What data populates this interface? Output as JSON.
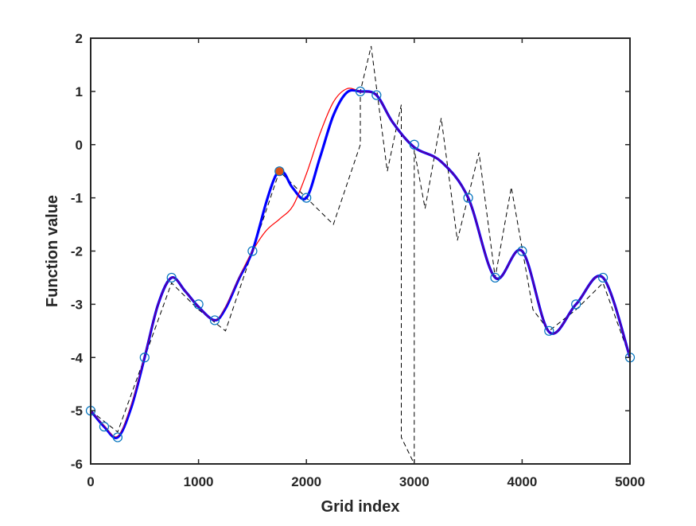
{
  "chart_data": {
    "type": "line",
    "title": "",
    "xlabel": "Grid index",
    "ylabel": "Function value",
    "xlim": [
      0,
      5000
    ],
    "ylim": [
      -6,
      2
    ],
    "xticks": [
      0,
      1000,
      2000,
      3000,
      4000,
      5000
    ],
    "yticks": [
      -6,
      -5,
      -4,
      -3,
      -2,
      -1,
      0,
      1,
      2
    ],
    "grid": false,
    "legend": "none",
    "colors": {
      "axes": "#262626",
      "markers": "#0072BD",
      "highlight": "#D95319",
      "red_curve": "#FF0000",
      "blue_curve": "#0000FF",
      "dashed": "#000000"
    },
    "series": [
      {
        "style": "markers-circle",
        "x": [
          0,
          125,
          250,
          500,
          750,
          1000,
          1150,
          1500,
          1750,
          2000,
          2500,
          2650,
          3000,
          3500,
          3750,
          4000,
          4250,
          4500,
          4750,
          5000
        ],
        "y": [
          -5,
          -5.3,
          -5.5,
          -4,
          -2.5,
          -3,
          -3.3,
          -2,
          -0.5,
          -1,
          1,
          0.93,
          0,
          -1,
          -2.5,
          -2,
          -3.5,
          -3,
          -2.5,
          -4
        ]
      },
      {
        "style": "filled-marker",
        "x": [
          1750
        ],
        "y": [
          -0.5
        ]
      },
      {
        "style": "dashed-line",
        "x": [
          0,
          250,
          750,
          1000,
          1250,
          1500,
          1750,
          2000,
          2250,
          2500,
          2500,
          2600,
          2750,
          2880,
          2880,
          3000,
          3000,
          3100,
          3250,
          3400,
          3600,
          3750,
          3900,
          4100,
          4250,
          4500,
          4750,
          5000
        ],
        "y": [
          -5,
          -5.4,
          -2.6,
          -3.1,
          -3.5,
          -2,
          -0.5,
          -1,
          -1.5,
          0,
          1,
          1.85,
          -0.5,
          0.75,
          -5.5,
          -6,
          -0.1,
          -1.2,
          0.5,
          -1.8,
          -0.15,
          -2.5,
          -0.8,
          -3.1,
          -3.5,
          -3.1,
          -2.6,
          -4
        ]
      },
      {
        "style": "red-thin-line",
        "x": [
          0,
          125,
          250,
          375,
          500,
          625,
          750,
          875,
          1000,
          1150,
          1250,
          1375,
          1500,
          1625,
          1750,
          1875,
          2000,
          2125,
          2250,
          2375,
          2500,
          2650,
          2800,
          3000,
          3250,
          3500,
          3750,
          4000,
          4250,
          4500,
          4750,
          5000
        ],
        "y": [
          -5.0,
          -5.28,
          -5.48,
          -4.9,
          -3.98,
          -3.0,
          -2.5,
          -2.75,
          -3.05,
          -3.3,
          -3.05,
          -2.5,
          -2.0,
          -1.62,
          -1.4,
          -1.15,
          -0.55,
          0.2,
          0.8,
          1.05,
          1.0,
          0.93,
          0.42,
          -0.05,
          -0.32,
          -1.0,
          -2.5,
          -2.0,
          -3.52,
          -3.0,
          -2.5,
          -4.0
        ]
      },
      {
        "style": "blue-thick-line",
        "x": [
          0,
          125,
          250,
          375,
          500,
          625,
          750,
          875,
          1000,
          1150,
          1250,
          1375,
          1500,
          1625,
          1700,
          1750,
          1800,
          1875,
          2000,
          2125,
          2250,
          2375,
          2500,
          2650,
          2800,
          3000,
          3250,
          3500,
          3750,
          4000,
          4250,
          4500,
          4750,
          5000
        ],
        "y": [
          -5.0,
          -5.3,
          -5.5,
          -4.95,
          -4.0,
          -3.0,
          -2.5,
          -2.75,
          -3.05,
          -3.3,
          -3.08,
          -2.52,
          -2.0,
          -1.1,
          -0.65,
          -0.5,
          -0.55,
          -0.82,
          -1.0,
          -0.25,
          0.55,
          0.98,
          1.0,
          0.93,
          0.42,
          -0.05,
          -0.32,
          -1.0,
          -2.5,
          -2.0,
          -3.52,
          -3.0,
          -2.5,
          -4.0
        ]
      }
    ]
  }
}
